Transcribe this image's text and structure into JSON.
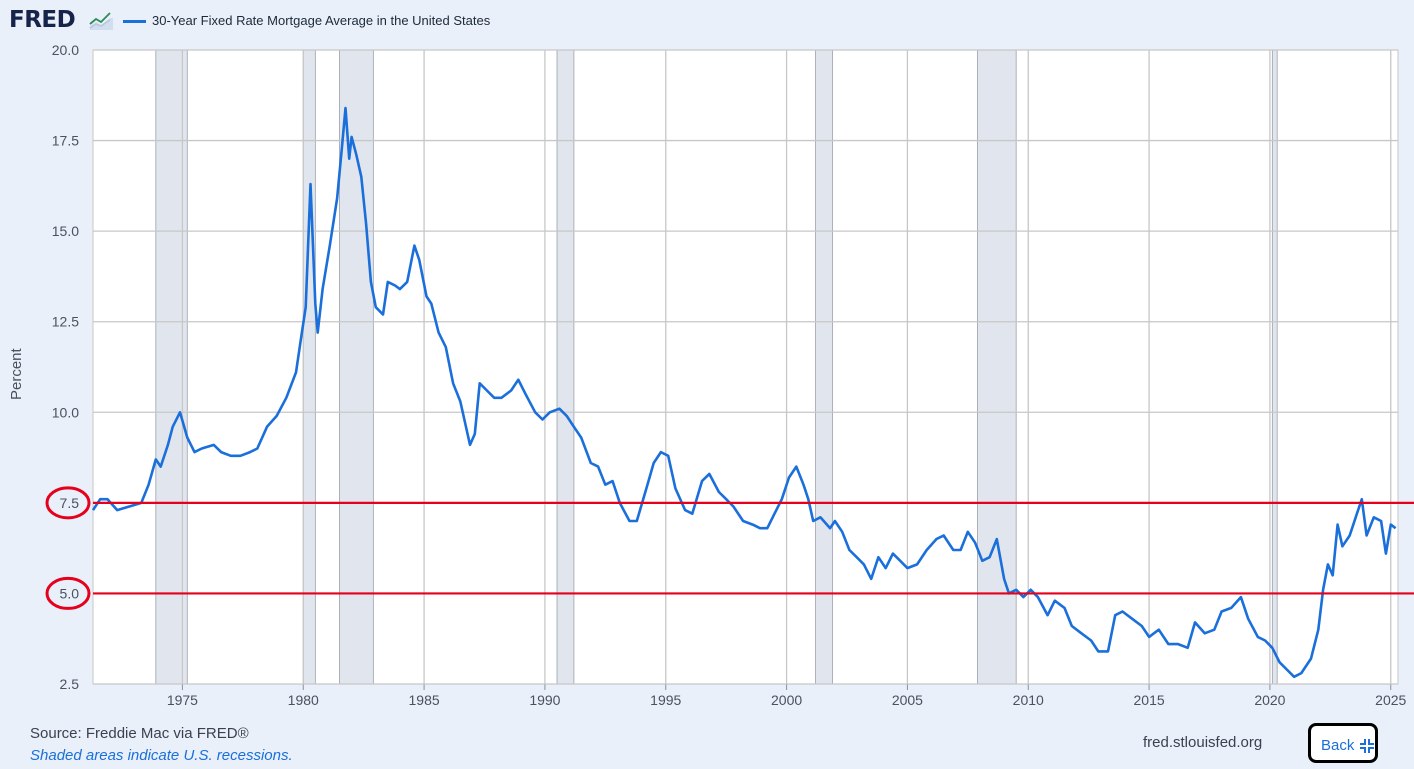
{
  "header": {
    "logo_text": "FRED",
    "legend_label": "30-Year Fixed Rate Mortgage Average in the United States"
  },
  "footer": {
    "source": "Source: Freddie Mac via FRED®",
    "shaded_note": "Shaded areas indicate U.S. recessions.",
    "site": "fred.stlouisfed.org",
    "back_label": "Back",
    "back_icon": "collapse-icon"
  },
  "colors": {
    "series": "#1a6fdb",
    "recession": "#e1e6ee",
    "annotation": "#e5001c",
    "grid": "#c7c7c7",
    "background": "#e9f0f9"
  },
  "chart_data": {
    "type": "line",
    "ylabel": "Percent",
    "xlabel": "",
    "ylim": [
      2.5,
      20.0
    ],
    "xlim": [
      1971.3,
      2025.3
    ],
    "y_ticks": [
      "2.5",
      "5.0",
      "7.5",
      "10.0",
      "12.5",
      "15.0",
      "17.5",
      "20.0"
    ],
    "x_ticks": [
      "1975",
      "1980",
      "1985",
      "1990",
      "1995",
      "2000",
      "2005",
      "2010",
      "2015",
      "2020",
      "2025"
    ],
    "grid": true,
    "recessions": [
      [
        1973.9,
        1975.2
      ],
      [
        1980.0,
        1980.5
      ],
      [
        1981.5,
        1982.9
      ],
      [
        1990.5,
        1991.2
      ],
      [
        2001.2,
        2001.9
      ],
      [
        2007.9,
        2009.5
      ],
      [
        2020.1,
        2020.3
      ]
    ],
    "annotations": {
      "reference_lines": [
        7.5,
        5.0
      ],
      "circled_ticks": [
        "7.5",
        "5.0"
      ]
    },
    "series": [
      {
        "name": "30-Year Fixed Rate Mortgage Average in the United States",
        "x": [
          1971.3,
          1971.6,
          1971.9,
          1972.3,
          1972.8,
          1973.3,
          1973.6,
          1973.9,
          1974.1,
          1974.4,
          1974.6,
          1974.9,
          1975.2,
          1975.5,
          1975.8,
          1976.3,
          1976.6,
          1977.0,
          1977.4,
          1977.8,
          1978.1,
          1978.5,
          1978.9,
          1979.3,
          1979.7,
          1979.9,
          1980.1,
          1980.3,
          1980.5,
          1980.6,
          1980.8,
          1981.1,
          1981.4,
          1981.6,
          1981.75,
          1981.9,
          1982.0,
          1982.2,
          1982.4,
          1982.6,
          1982.8,
          1983.0,
          1983.3,
          1983.5,
          1983.8,
          1984.0,
          1984.3,
          1984.6,
          1984.8,
          1985.1,
          1985.3,
          1985.6,
          1985.9,
          1986.2,
          1986.5,
          1986.9,
          1987.1,
          1987.3,
          1987.6,
          1987.9,
          1988.2,
          1988.6,
          1988.9,
          1989.2,
          1989.6,
          1989.9,
          1990.2,
          1990.6,
          1990.9,
          1991.2,
          1991.5,
          1991.9,
          1992.2,
          1992.5,
          1992.8,
          1993.1,
          1993.5,
          1993.8,
          1994.2,
          1994.5,
          1994.8,
          1995.1,
          1995.4,
          1995.8,
          1996.1,
          1996.5,
          1996.8,
          1997.2,
          1997.5,
          1997.8,
          1998.2,
          1998.6,
          1998.9,
          1999.2,
          1999.5,
          1999.8,
          2000.1,
          2000.4,
          2000.7,
          2000.9,
          2001.1,
          2001.4,
          2001.8,
          2002.0,
          2002.3,
          2002.6,
          2002.9,
          2003.2,
          2003.5,
          2003.8,
          2004.1,
          2004.4,
          2004.7,
          2005.0,
          2005.4,
          2005.8,
          2006.2,
          2006.5,
          2006.9,
          2007.2,
          2007.5,
          2007.8,
          2008.1,
          2008.4,
          2008.7,
          2009.0,
          2009.2,
          2009.5,
          2009.8,
          2010.1,
          2010.4,
          2010.8,
          2011.1,
          2011.5,
          2011.8,
          2012.2,
          2012.6,
          2012.9,
          2013.3,
          2013.6,
          2013.9,
          2014.3,
          2014.7,
          2015.0,
          2015.4,
          2015.8,
          2016.2,
          2016.6,
          2016.9,
          2017.3,
          2017.7,
          2018.0,
          2018.4,
          2018.8,
          2019.1,
          2019.5,
          2019.8,
          2020.1,
          2020.4,
          2020.7,
          2021.0,
          2021.3,
          2021.7,
          2022.0,
          2022.2,
          2022.4,
          2022.6,
          2022.8,
          2023.0,
          2023.3,
          2023.6,
          2023.8,
          2024.0,
          2024.3,
          2024.6,
          2024.8,
          2025.0,
          2025.2
        ],
        "y": [
          7.3,
          7.6,
          7.6,
          7.3,
          7.4,
          7.5,
          8.0,
          8.7,
          8.5,
          9.1,
          9.6,
          10.0,
          9.3,
          8.9,
          9.0,
          9.1,
          8.9,
          8.8,
          8.8,
          8.9,
          9.0,
          9.6,
          9.9,
          10.4,
          11.1,
          12.0,
          12.9,
          16.3,
          13.0,
          12.2,
          13.4,
          14.6,
          15.9,
          17.3,
          18.4,
          17.0,
          17.6,
          17.1,
          16.5,
          15.2,
          13.6,
          12.9,
          12.7,
          13.6,
          13.5,
          13.4,
          13.6,
          14.6,
          14.2,
          13.2,
          13.0,
          12.2,
          11.8,
          10.8,
          10.3,
          9.1,
          9.4,
          10.8,
          10.6,
          10.4,
          10.4,
          10.6,
          10.9,
          10.5,
          10.0,
          9.8,
          10.0,
          10.1,
          9.9,
          9.6,
          9.3,
          8.6,
          8.5,
          8.0,
          8.1,
          7.5,
          7.0,
          7.0,
          7.9,
          8.6,
          8.9,
          8.8,
          7.9,
          7.3,
          7.2,
          8.1,
          8.3,
          7.8,
          7.6,
          7.4,
          7.0,
          6.9,
          6.8,
          6.8,
          7.2,
          7.6,
          8.2,
          8.5,
          8.0,
          7.6,
          7.0,
          7.1,
          6.8,
          7.0,
          6.7,
          6.2,
          6.0,
          5.8,
          5.4,
          6.0,
          5.7,
          6.1,
          5.9,
          5.7,
          5.8,
          6.2,
          6.5,
          6.6,
          6.2,
          6.2,
          6.7,
          6.4,
          5.9,
          6.0,
          6.5,
          5.4,
          5.0,
          5.1,
          4.9,
          5.1,
          4.9,
          4.4,
          4.8,
          4.6,
          4.1,
          3.9,
          3.7,
          3.4,
          3.4,
          4.4,
          4.5,
          4.3,
          4.1,
          3.8,
          4.0,
          3.6,
          3.6,
          3.5,
          4.2,
          3.9,
          4.0,
          4.5,
          4.6,
          4.9,
          4.3,
          3.8,
          3.7,
          3.5,
          3.1,
          2.9,
          2.7,
          2.8,
          3.2,
          4.0,
          5.1,
          5.8,
          5.5,
          6.9,
          6.3,
          6.6,
          7.2,
          7.6,
          6.6,
          7.1,
          7.0,
          6.1,
          6.9,
          6.8
        ]
      }
    ]
  }
}
